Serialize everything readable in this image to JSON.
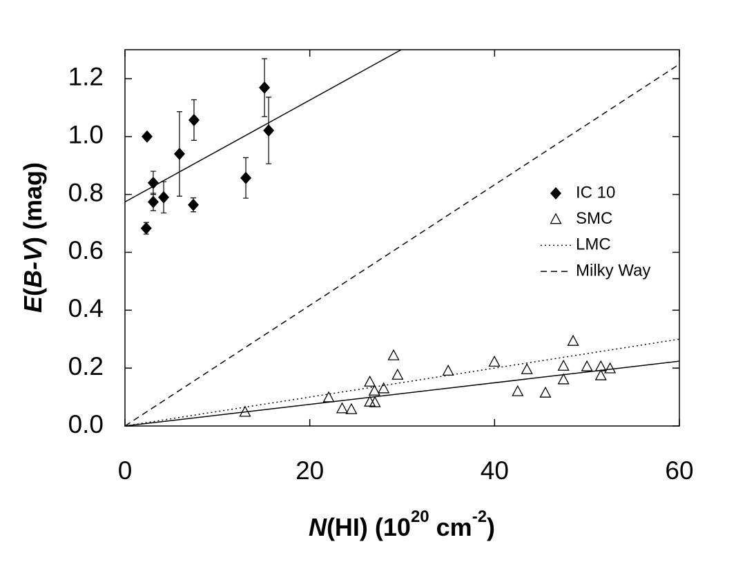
{
  "chart_data": {
    "type": "scatter",
    "xlabel": [
      "N",
      "(HI)   (10",
      "20",
      " cm",
      "-2",
      ")"
    ],
    "ylabel": [
      "E",
      "(",
      "B-V",
      ")   (mag)"
    ],
    "xlim": [
      0,
      60
    ],
    "ylim": [
      0,
      1.3
    ],
    "xticks": [
      0,
      20,
      40,
      60
    ],
    "yticks": [
      {
        "value": 0,
        "label": "0.0"
      },
      0.2,
      0.4,
      0.6,
      0.8,
      {
        "value": 1,
        "label": "1.0"
      },
      1.2
    ],
    "series": [
      {
        "name": "IC 10",
        "marker": "diamond",
        "color": "#000000",
        "x": [
          2.39,
          2.3,
          3.06,
          3.06,
          4.19,
          5.9,
          7.47,
          7.4,
          13.08,
          15.1,
          15.55
        ],
        "values": [
          1.0,
          0.683,
          0.84,
          0.774,
          0.79,
          0.94,
          1.057,
          0.764,
          0.857,
          1.169,
          1.021
        ],
        "errors": [
          0.01,
          0.02,
          0.04,
          0.03,
          0.054,
          0.146,
          0.07,
          0.024,
          0.07,
          0.1,
          0.115
        ]
      },
      {
        "name": "SMC",
        "marker": "triangle",
        "color": "#000000",
        "x": [
          13.0,
          22.05,
          23.5,
          24.5,
          26.5,
          26.5,
          27.05,
          27.0,
          28.0,
          29.07,
          29.5,
          34.98,
          39.98,
          42.5,
          43.5,
          45.5,
          47.46,
          47.46,
          48.5,
          50.0,
          51.5,
          51.5,
          52.5
        ],
        "values": [
          0.048,
          0.098,
          0.06,
          0.057,
          0.152,
          0.083,
          0.081,
          0.121,
          0.129,
          0.243,
          0.176,
          0.19,
          0.221,
          0.119,
          0.195,
          0.114,
          0.207,
          0.16,
          0.293,
          0.205,
          0.205,
          0.174,
          0.198
        ]
      },
      {
        "name": "LMC",
        "style": "dotted",
        "color": "#000000",
        "x": [
          0,
          60
        ],
        "values": [
          0,
          0.3
        ]
      },
      {
        "name": "Milky Way",
        "style": "dashed",
        "color": "#000000",
        "x": [
          0,
          60
        ],
        "values": [
          0,
          1.25
        ]
      }
    ],
    "fits": [
      {
        "style": "solid",
        "color": "#000000",
        "x": [
          0,
          29.9
        ],
        "values": [
          0.774,
          1.3
        ]
      },
      {
        "style": "solid",
        "color": "#000000",
        "x": [
          0,
          60
        ],
        "values": [
          0,
          0.224
        ]
      }
    ]
  }
}
